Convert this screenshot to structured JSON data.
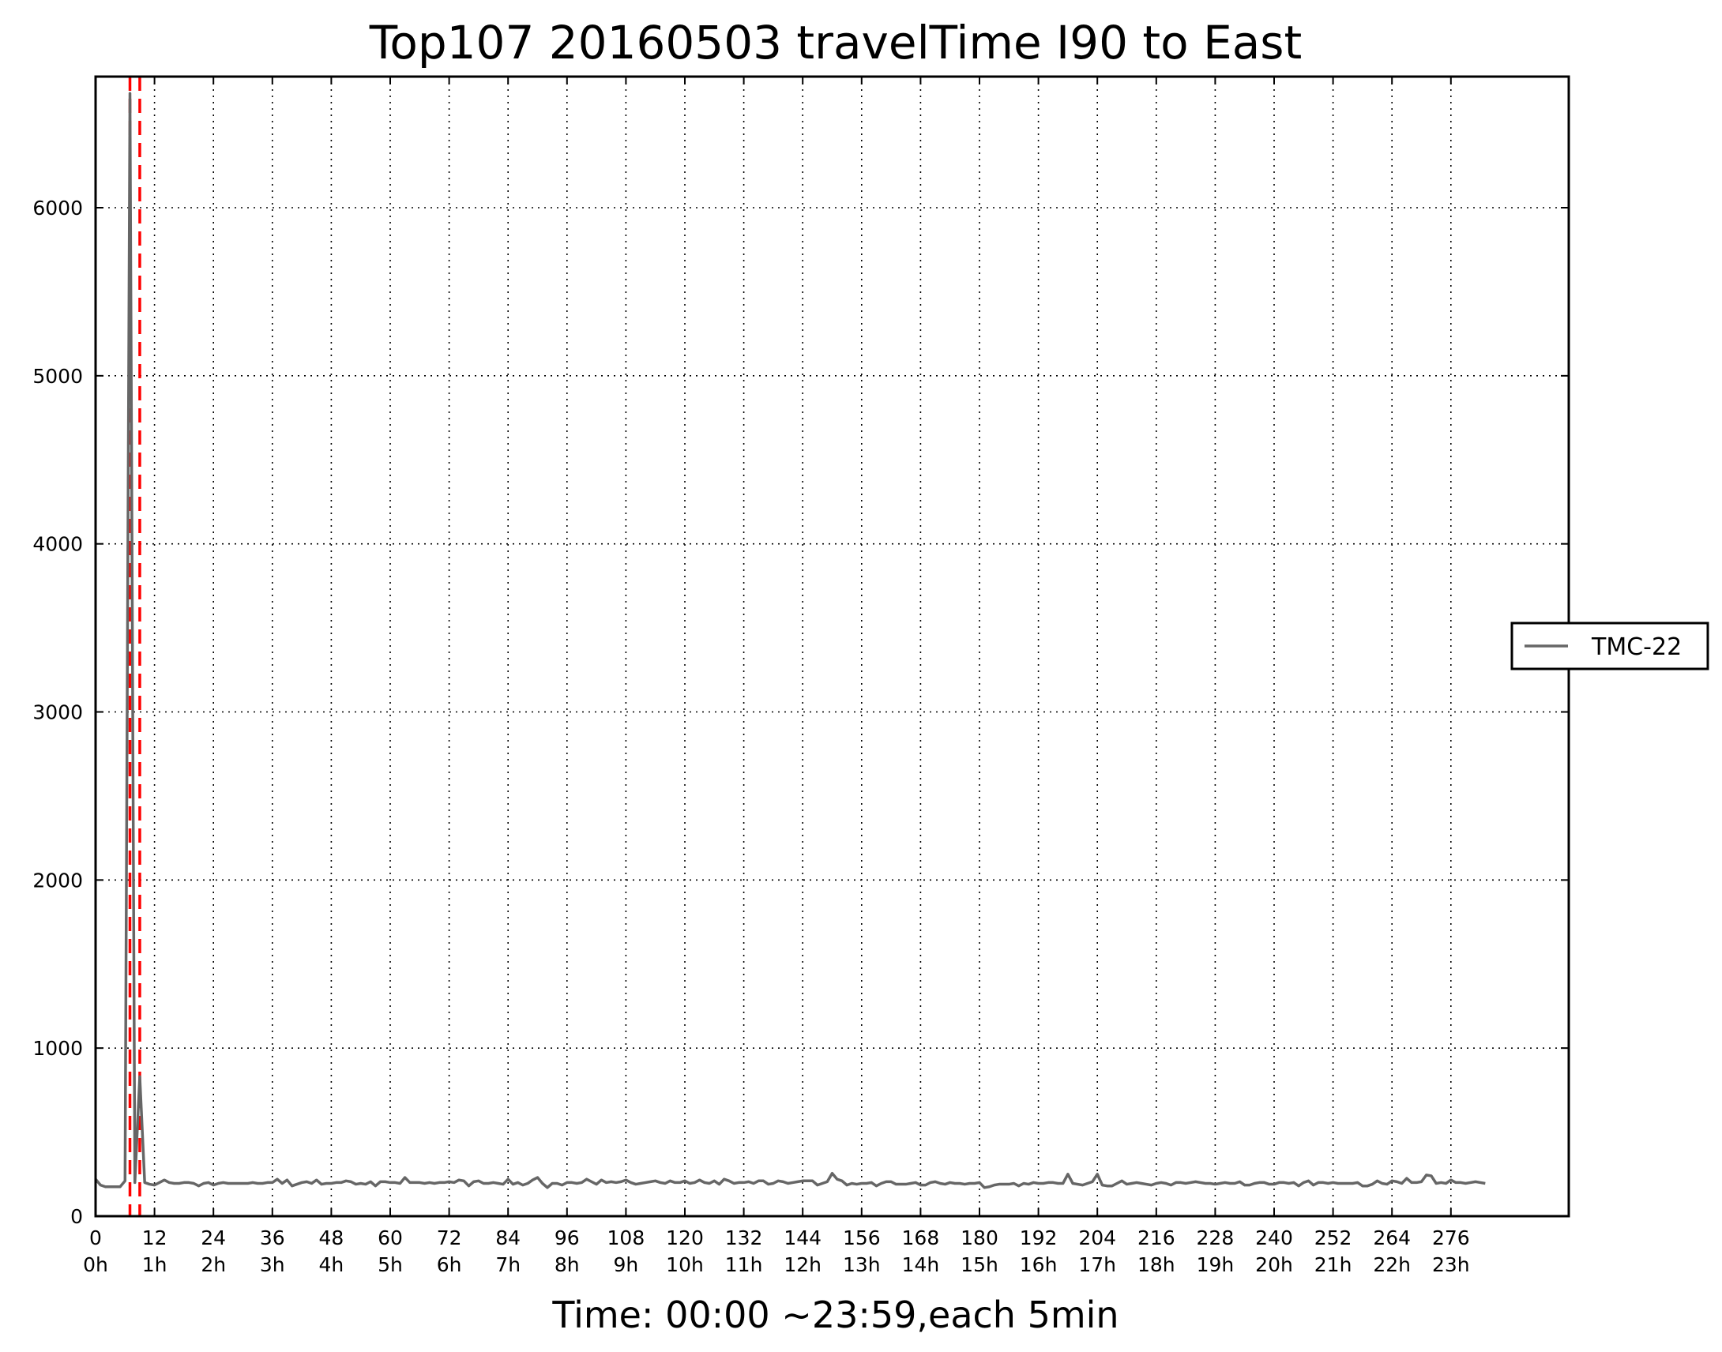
{
  "chart_data": {
    "type": "line",
    "title": "Top107 20160503 travelTime I90 to East",
    "xlabel": "Time: 00:00 ~23:59,each 5min",
    "ylabel": "",
    "xlim": [
      0,
      300
    ],
    "ylim": [
      0,
      6780
    ],
    "grid": true,
    "legend": {
      "placement": "right",
      "entries": [
        "TMC-22"
      ]
    },
    "x_ticks": [
      {
        "value": 0,
        "label": "0",
        "sublabel": "0h"
      },
      {
        "value": 12,
        "label": "12",
        "sublabel": "1h"
      },
      {
        "value": 24,
        "label": "24",
        "sublabel": "2h"
      },
      {
        "value": 36,
        "label": "36",
        "sublabel": "3h"
      },
      {
        "value": 48,
        "label": "48",
        "sublabel": "4h"
      },
      {
        "value": 60,
        "label": "60",
        "sublabel": "5h"
      },
      {
        "value": 72,
        "label": "72",
        "sublabel": "6h"
      },
      {
        "value": 84,
        "label": "84",
        "sublabel": "7h"
      },
      {
        "value": 96,
        "label": "96",
        "sublabel": "8h"
      },
      {
        "value": 108,
        "label": "108",
        "sublabel": "9h"
      },
      {
        "value": 120,
        "label": "120",
        "sublabel": "10h"
      },
      {
        "value": 132,
        "label": "132",
        "sublabel": "11h"
      },
      {
        "value": 144,
        "label": "144",
        "sublabel": "12h"
      },
      {
        "value": 156,
        "label": "156",
        "sublabel": "13h"
      },
      {
        "value": 168,
        "label": "168",
        "sublabel": "14h"
      },
      {
        "value": 180,
        "label": "180",
        "sublabel": "15h"
      },
      {
        "value": 192,
        "label": "192",
        "sublabel": "16h"
      },
      {
        "value": 204,
        "label": "204",
        "sublabel": "17h"
      },
      {
        "value": 216,
        "label": "216",
        "sublabel": "18h"
      },
      {
        "value": 228,
        "label": "228",
        "sublabel": "19h"
      },
      {
        "value": 240,
        "label": "240",
        "sublabel": "20h"
      },
      {
        "value": 252,
        "label": "252",
        "sublabel": "21h"
      },
      {
        "value": 264,
        "label": "264",
        "sublabel": "22h"
      },
      {
        "value": 276,
        "label": "276",
        "sublabel": "23h"
      }
    ],
    "y_ticks": [
      0,
      1000,
      2000,
      3000,
      4000,
      5000,
      6000
    ],
    "vlines": [
      {
        "x": 7,
        "color": "#ff0000",
        "style": "dashed"
      },
      {
        "x": 9,
        "color": "#ff0000",
        "style": "dashed"
      }
    ],
    "series": [
      {
        "name": "TMC-22",
        "color": "#666666",
        "x_start": 0,
        "x_step": 1,
        "values": [
          220,
          185,
          175,
          175,
          175,
          175,
          210,
          6680,
          200,
          830,
          200,
          190,
          185,
          200,
          215,
          200,
          195,
          195,
          200,
          200,
          195,
          180,
          195,
          200,
          185,
          195,
          200,
          195,
          195,
          195,
          195,
          195,
          200,
          195,
          195,
          200,
          200,
          220,
          195,
          215,
          180,
          190,
          200,
          205,
          195,
          215,
          190,
          195,
          195,
          200,
          200,
          210,
          205,
          190,
          195,
          190,
          205,
          180,
          205,
          205,
          200,
          200,
          195,
          230,
          200,
          200,
          200,
          195,
          200,
          195,
          200,
          200,
          205,
          200,
          215,
          210,
          180,
          205,
          210,
          195,
          195,
          200,
          195,
          190,
          220,
          190,
          200,
          185,
          195,
          215,
          230,
          195,
          170,
          195,
          195,
          185,
          200,
          200,
          195,
          200,
          220,
          205,
          190,
          215,
          200,
          205,
          200,
          205,
          215,
          200,
          190,
          195,
          200,
          205,
          210,
          200,
          195,
          210,
          200,
          200,
          210,
          195,
          200,
          215,
          200,
          195,
          210,
          190,
          220,
          210,
          195,
          200,
          200,
          205,
          195,
          210,
          210,
          190,
          195,
          210,
          205,
          195,
          200,
          205,
          210,
          210,
          210,
          185,
          195,
          205,
          255,
          220,
          210,
          185,
          195,
          190,
          195,
          195,
          200,
          180,
          195,
          205,
          205,
          190,
          190,
          190,
          195,
          200,
          185,
          185,
          200,
          205,
          195,
          190,
          200,
          195,
          195,
          190,
          195,
          195,
          200,
          170,
          175,
          185,
          190,
          190,
          190,
          195,
          180,
          195,
          190,
          200,
          195,
          195,
          200,
          200,
          195,
          195,
          250,
          195,
          190,
          185,
          195,
          205,
          250,
          185,
          180,
          180,
          195,
          210,
          190,
          195,
          200,
          195,
          190,
          185,
          195,
          200,
          195,
          185,
          200,
          200,
          195,
          200,
          205,
          200,
          195,
          195,
          190,
          195,
          200,
          195,
          195,
          205,
          185,
          185,
          195,
          200,
          200,
          190,
          190,
          200,
          200,
          195,
          200,
          180,
          200,
          210,
          185,
          200,
          200,
          195,
          200,
          195,
          195,
          195,
          195,
          200,
          180,
          180,
          190,
          210,
          195,
          190,
          210,
          205,
          195,
          225,
          200,
          200,
          205,
          245,
          240,
          195,
          200,
          195,
          215,
          200,
          200,
          195,
          200,
          205,
          200,
          195
        ]
      }
    ]
  }
}
